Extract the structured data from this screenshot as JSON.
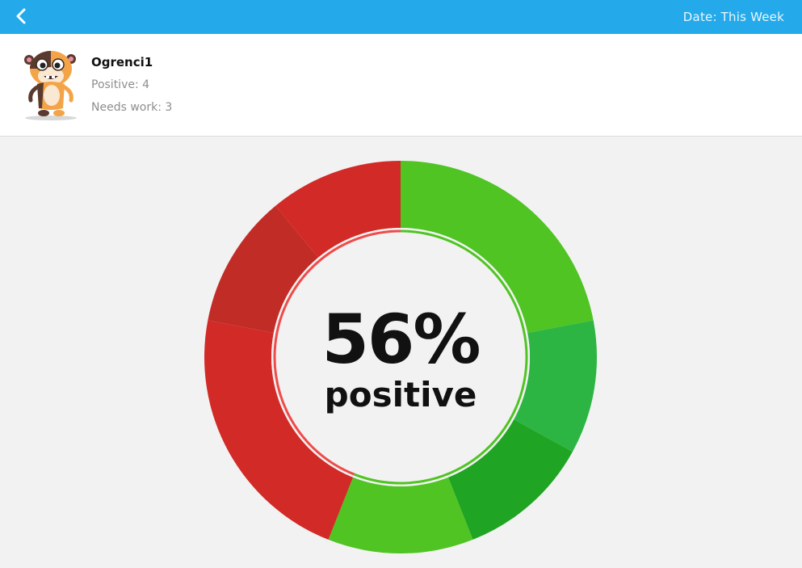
{
  "header": {
    "back_icon": "chevron-left-icon",
    "date_label": "Date: This Week",
    "bar_color": "#24aaeb"
  },
  "student": {
    "name": "Ogrenci1",
    "positive_label": "Positive: 4",
    "needs_work_label": "Needs work: 3",
    "avatar_icon": "monster-avatar-icon"
  },
  "summary": {
    "percent": "56%",
    "label": "positive"
  },
  "chart_data": {
    "type": "pie",
    "title": "",
    "percent_positive": 56,
    "segments": [
      {
        "kind": "positive",
        "value": 22,
        "color": "#4fc423"
      },
      {
        "kind": "positive",
        "value": 11,
        "color": "#2db543"
      },
      {
        "kind": "positive",
        "value": 11,
        "color": "#1fa523"
      },
      {
        "kind": "positive",
        "value": 12,
        "color": "#4fc423"
      },
      {
        "kind": "needs-work",
        "value": 22,
        "color": "#d22a26"
      },
      {
        "kind": "needs-work",
        "value": 11,
        "color": "#c22c26"
      },
      {
        "kind": "needs-work",
        "value": 11,
        "color": "#d22a26"
      }
    ],
    "ring_colors": {
      "positive": "#4fc423",
      "needs_work": "#ef4b4b"
    }
  }
}
